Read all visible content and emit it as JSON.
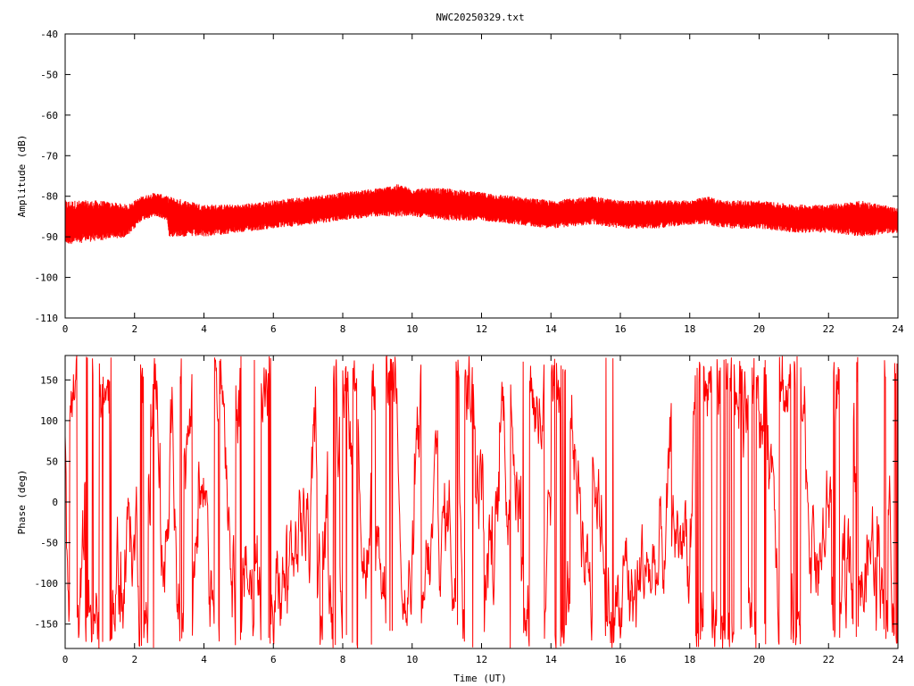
{
  "figure": {
    "title": "NWC20250329.txt"
  },
  "colors": {
    "series": "#ff0000",
    "axis": "#000000",
    "background": "#ffffff"
  },
  "chart_data": [
    {
      "type": "line",
      "title": "NWC20250329.txt",
      "xlabel": "",
      "ylabel": "Amplitude (dB)",
      "xlim": [
        0,
        24
      ],
      "ylim": [
        -110,
        -40
      ],
      "xticks": [
        0,
        2,
        4,
        6,
        8,
        10,
        12,
        14,
        16,
        18,
        20,
        22,
        24
      ],
      "yticks": [
        -110,
        -100,
        -90,
        -80,
        -70,
        -60,
        -50,
        -40
      ],
      "xtick_labels": [
        "0",
        "2",
        "4",
        "6",
        "8",
        "10",
        "12",
        "14",
        "16",
        "18",
        "20",
        "22",
        "24"
      ],
      "ytick_labels": [
        "-110",
        "-100",
        "-90",
        "-80",
        "-70",
        "-60",
        "-50",
        "-40"
      ],
      "grid": false,
      "series": [
        {
          "color": "#ff0000",
          "envelope_x": [
            0,
            1,
            1.8,
            2.2,
            2.6,
            2.95,
            3.0,
            4,
            5,
            6,
            7,
            8,
            9,
            9.6,
            10,
            11,
            12,
            13,
            14,
            15.2,
            16,
            17,
            18,
            18.5,
            19,
            20,
            21,
            22,
            23,
            24
          ],
          "envelope_min": [
            -92,
            -91,
            -90,
            -86,
            -85,
            -86,
            -90,
            -90,
            -89,
            -88,
            -87,
            -86,
            -85,
            -85,
            -85,
            -86,
            -86,
            -87,
            -88,
            -87,
            -88,
            -88,
            -87,
            -87,
            -88,
            -88,
            -89,
            -89,
            -90,
            -89
          ],
          "envelope_max": [
            -81,
            -81,
            -82,
            -80,
            -79,
            -80,
            -80,
            -82,
            -82,
            -81,
            -80,
            -79,
            -78,
            -77,
            -78,
            -78,
            -79,
            -80,
            -81,
            -80,
            -81,
            -81,
            -81,
            -80,
            -81,
            -81,
            -82,
            -82,
            -81,
            -83
          ]
        }
      ]
    },
    {
      "type": "line",
      "title": "",
      "xlabel": "Time (UT)",
      "ylabel": "Phase (deg)",
      "xlim": [
        0,
        24
      ],
      "ylim": [
        -180,
        180
      ],
      "xticks": [
        0,
        2,
        4,
        6,
        8,
        10,
        12,
        14,
        16,
        18,
        20,
        22,
        24
      ],
      "yticks": [
        -150,
        -100,
        -50,
        0,
        50,
        100,
        150
      ],
      "xtick_labels": [
        "0",
        "2",
        "4",
        "6",
        "8",
        "10",
        "12",
        "14",
        "16",
        "18",
        "20",
        "22",
        "24"
      ],
      "ytick_labels": [
        "-150",
        "-100",
        "-50",
        "0",
        "50",
        "100",
        "150"
      ],
      "grid": false,
      "series": [
        {
          "color": "#ff0000",
          "note_range": [
            -180,
            180
          ]
        }
      ]
    }
  ]
}
